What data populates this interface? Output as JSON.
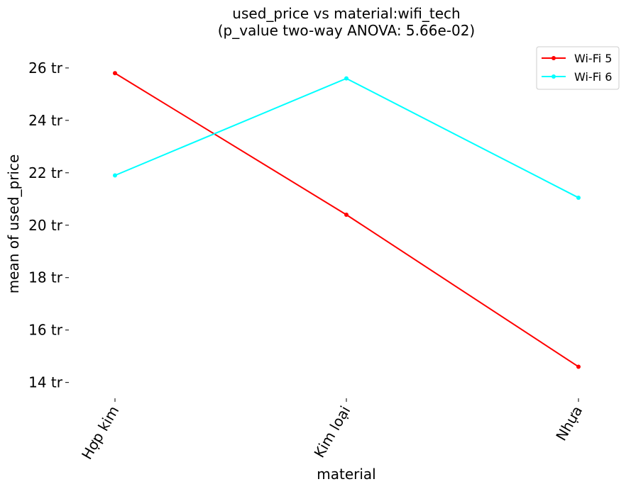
{
  "chart_data": {
    "type": "line",
    "title_line1": "used_price vs material:wifi_tech",
    "title_line2": "(p_value two-way ANOVA: 5.66e-02)",
    "xlabel": "material",
    "ylabel": "mean of used_price",
    "categories": [
      "Hợp kim",
      "Kim loại",
      "Nhựa"
    ],
    "ytick_labels": [
      "14 tr",
      "16 tr",
      "18 tr",
      "20 tr",
      "22 tr",
      "24 tr",
      "26 tr"
    ],
    "yticks": [
      14,
      16,
      18,
      20,
      22,
      24,
      26
    ],
    "ylim": [
      13.45,
      26.7
    ],
    "grid": false,
    "legend_position": "top-right",
    "series": [
      {
        "name": "Wi-Fi 5",
        "color": "#ff0000",
        "values": [
          25.8,
          20.4,
          14.6
        ]
      },
      {
        "name": "Wi-Fi 6",
        "color": "#00ffff",
        "values": [
          21.9,
          25.6,
          21.05
        ]
      }
    ]
  }
}
